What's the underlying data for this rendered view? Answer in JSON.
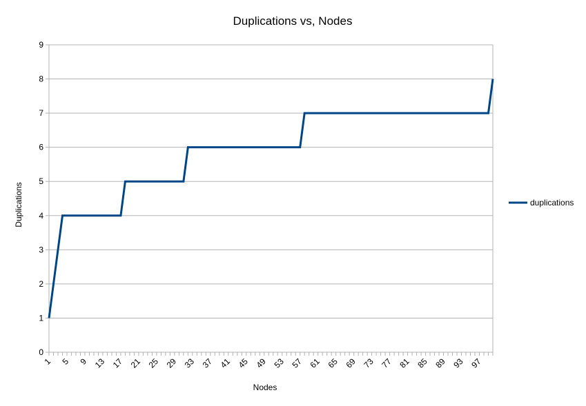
{
  "chart_data": {
    "type": "line",
    "title": "Duplications vs, Nodes",
    "xlabel": "Nodes",
    "ylabel": "Duplications",
    "ylim": [
      0,
      9
    ],
    "yticks": [
      0,
      1,
      2,
      3,
      4,
      5,
      6,
      7,
      8,
      9
    ],
    "xlim": [
      1,
      100
    ],
    "xtick_labels": [
      1,
      5,
      9,
      13,
      17,
      21,
      25,
      29,
      33,
      37,
      41,
      45,
      49,
      53,
      57,
      61,
      65,
      69,
      73,
      77,
      81,
      85,
      89,
      93,
      97
    ],
    "grid": true,
    "legend_position": "right",
    "series": [
      {
        "name": "duplications",
        "color": "#004586",
        "points": [
          [
            1,
            1
          ],
          [
            4,
            4
          ],
          [
            17,
            4
          ],
          [
            18,
            5
          ],
          [
            31,
            5
          ],
          [
            32,
            6
          ],
          [
            57,
            6
          ],
          [
            58,
            7
          ],
          [
            99,
            7
          ],
          [
            100,
            8
          ]
        ]
      }
    ]
  }
}
